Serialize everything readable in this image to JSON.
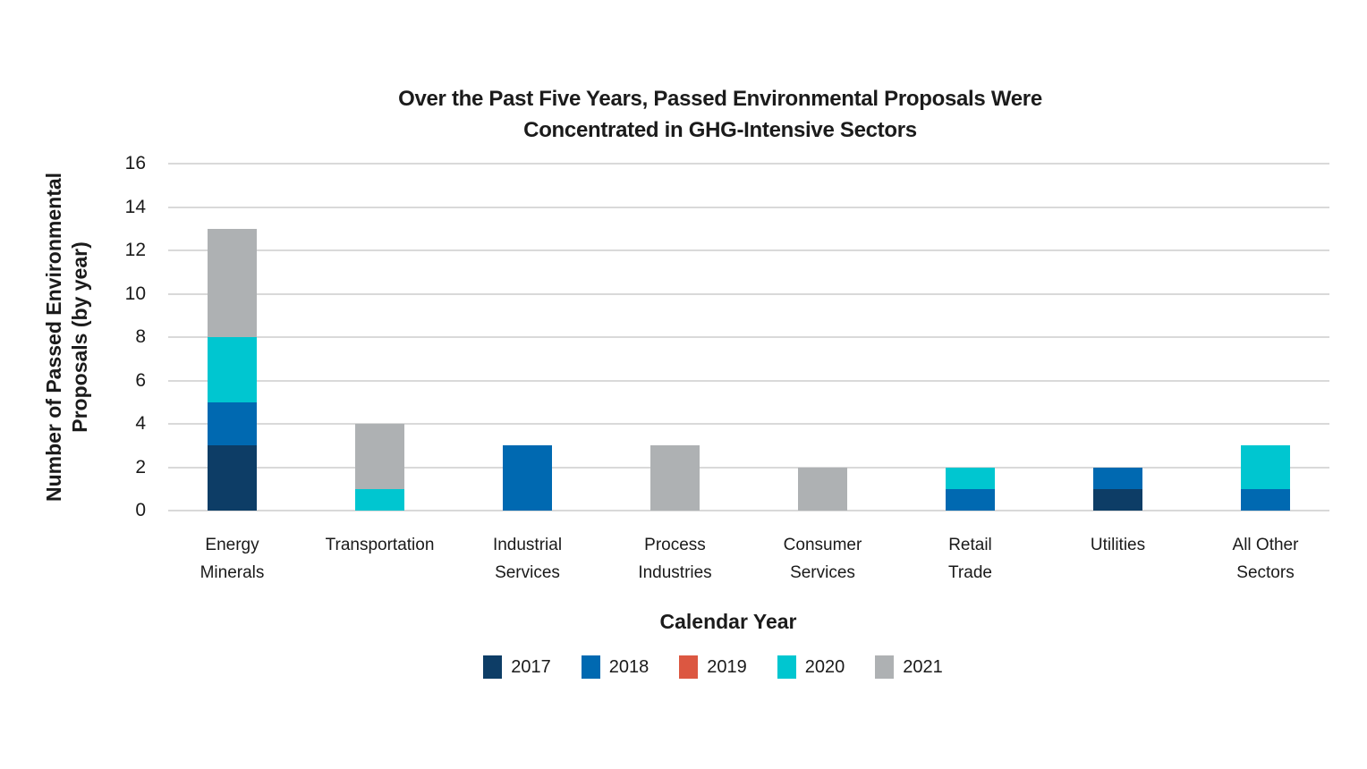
{
  "title": {
    "line1": "Over the Past Five Years, Passed Environmental Proposals Were",
    "line2": "Concentrated in GHG-Intensive Sectors"
  },
  "colors": {
    "grid": "#d9d9d9",
    "text": "#1a1a1a",
    "background": "#ffffff"
  },
  "chart_data": {
    "type": "bar",
    "stacked": true,
    "title": "Over the Past Five Years, Passed Environmental Proposals Were Concentrated in GHG-Intensive Sectors",
    "xlabel": "Calendar Year",
    "ylabel": "Number of Passed Environmental Proposals (by year)",
    "ylim": [
      0,
      16
    ],
    "yticks": [
      0,
      2,
      4,
      6,
      8,
      10,
      12,
      14,
      16
    ],
    "grid": true,
    "legend_position": "bottom",
    "categories": [
      "Energy Minerals",
      "Transportation",
      "Industrial Services",
      "Process Industries",
      "Consumer Services",
      "Retail Trade",
      "Utilities",
      "All Other Sectors"
    ],
    "category_label_lines": [
      [
        "Energy",
        "Minerals"
      ],
      [
        "Transportation"
      ],
      [
        "Industrial",
        "Services"
      ],
      [
        "Process",
        "Industries"
      ],
      [
        "Consumer",
        "Services"
      ],
      [
        "Retail",
        "Trade"
      ],
      [
        "Utilities"
      ],
      [
        "All Other",
        "Sectors"
      ]
    ],
    "series": [
      {
        "name": "2017",
        "color": "#0d3d66",
        "values": [
          3,
          0,
          0,
          0,
          0,
          0,
          1,
          0
        ]
      },
      {
        "name": "2018",
        "color": "#0069b1",
        "values": [
          2,
          0,
          3,
          0,
          0,
          1,
          1,
          1
        ]
      },
      {
        "name": "2019",
        "color": "#dc5741",
        "values": [
          0,
          0,
          0,
          0,
          0,
          0,
          0,
          0
        ]
      },
      {
        "name": "2020",
        "color": "#00c6d0",
        "values": [
          3,
          1,
          0,
          0,
          0,
          1,
          0,
          2
        ]
      },
      {
        "name": "2021",
        "color": "#aeb1b3",
        "values": [
          5,
          3,
          0,
          3,
          2,
          0,
          0,
          0
        ]
      }
    ]
  }
}
